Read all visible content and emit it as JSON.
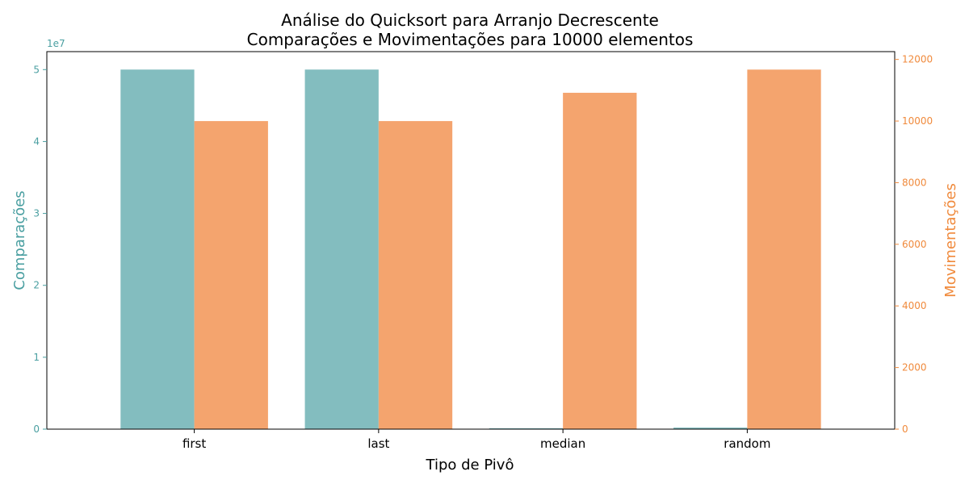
{
  "chart_data": {
    "type": "bar",
    "title": "Análise do Quicksort para Arranjo Decrescente",
    "subtitle": "Comparações e Movimentações para 10000 elementos",
    "xlabel": "Tipo de Pivô",
    "categories": [
      "first",
      "last",
      "median",
      "random"
    ],
    "grid": false,
    "legend": "none",
    "series": [
      {
        "name": "Comparações",
        "axis": "left",
        "color": "#83bdbf",
        "axis_color": "#4a9fa1",
        "values": [
          50005000,
          50005000,
          130000,
          220000
        ]
      },
      {
        "name": "Movimentações",
        "axis": "right",
        "color": "#f4a46e",
        "axis_color": "#f08a3c",
        "values": [
          9999,
          9999,
          10917,
          11670
        ]
      }
    ],
    "y_left": {
      "label": "Comparações",
      "multiplier_label": "1e7",
      "ylim": [
        0,
        52500000
      ],
      "ticks": [
        0,
        10000000,
        20000000,
        30000000,
        40000000,
        50000000
      ],
      "tick_labels": [
        "0",
        "1",
        "2",
        "3",
        "4",
        "5"
      ]
    },
    "y_right": {
      "label": "Movimentações",
      "ylim": [
        0,
        12253
      ],
      "ticks": [
        0,
        2000,
        4000,
        6000,
        8000,
        10000,
        12000
      ],
      "tick_labels": [
        "0",
        "2000",
        "4000",
        "6000",
        "8000",
        "10000",
        "12000"
      ]
    }
  }
}
